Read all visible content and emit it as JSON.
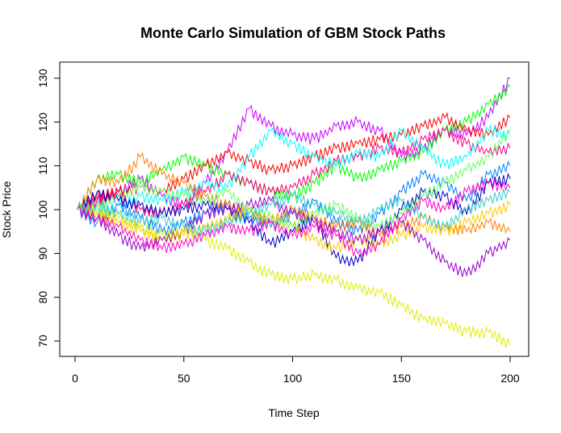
{
  "chart_data": {
    "type": "line",
    "title": "Monte Carlo Simulation of GBM Stock Paths",
    "xlabel": "Time Step",
    "ylabel": "Stock Price",
    "xlim": [
      0,
      200
    ],
    "ylim": [
      70,
      130
    ],
    "x_ticks": [
      0,
      50,
      100,
      150,
      200
    ],
    "y_ticks": [
      70,
      80,
      90,
      100,
      110,
      120,
      130
    ],
    "grid": false,
    "legend": "none",
    "series": [
      {
        "color": "#CC00FF",
        "x": [
          1,
          10,
          20,
          30,
          40,
          50,
          60,
          70,
          80,
          90,
          100,
          110,
          120,
          130,
          140,
          150,
          160,
          170,
          180,
          190,
          200
        ],
        "y": [
          100,
          102,
          104,
          107,
          103,
          101,
          106,
          113,
          123,
          119,
          117,
          116,
          119,
          120,
          118,
          112,
          114,
          118,
          117,
          121,
          130
        ]
      },
      {
        "color": "#00FF00",
        "x": [
          1,
          10,
          20,
          30,
          40,
          50,
          60,
          70,
          80,
          90,
          100,
          110,
          120,
          130,
          140,
          150,
          160,
          170,
          180,
          190,
          200
        ],
        "y": [
          100,
          107,
          108,
          106,
          109,
          112,
          110,
          108,
          106,
          104,
          103,
          106,
          110,
          107,
          109,
          111,
          113,
          118,
          120,
          124,
          128
        ]
      },
      {
        "color": "#FF0000",
        "x": [
          1,
          10,
          20,
          30,
          40,
          50,
          60,
          70,
          80,
          90,
          100,
          110,
          120,
          130,
          140,
          150,
          160,
          170,
          180,
          190,
          200
        ],
        "y": [
          100,
          103,
          104,
          105,
          104,
          107,
          110,
          113,
          111,
          109,
          110,
          112,
          114,
          115,
          116,
          117,
          119,
          121,
          118,
          117,
          121
        ]
      },
      {
        "color": "#FF0080",
        "x": [
          1,
          10,
          20,
          30,
          40,
          50,
          60,
          70,
          80,
          90,
          100,
          110,
          120,
          130,
          140,
          150,
          160,
          170,
          180,
          190,
          200
        ],
        "y": [
          100,
          102,
          103,
          100,
          99,
          101,
          104,
          108,
          106,
          104,
          105,
          108,
          111,
          112,
          114,
          113,
          116,
          118,
          115,
          113,
          114
        ]
      },
      {
        "color": "#00FFFF",
        "x": [
          1,
          10,
          20,
          30,
          40,
          50,
          60,
          70,
          80,
          90,
          100,
          110,
          120,
          130,
          140,
          150,
          160,
          170,
          180,
          190,
          200
        ],
        "y": [
          100,
          99,
          101,
          103,
          102,
          104,
          106,
          105,
          112,
          118,
          115,
          112,
          110,
          113,
          112,
          118,
          114,
          110,
          112,
          118,
          117
        ]
      },
      {
        "color": "#0000CC",
        "x": [
          1,
          10,
          20,
          30,
          40,
          50,
          60,
          70,
          80,
          90,
          100,
          110,
          120,
          130,
          140,
          150,
          160,
          170,
          180,
          190,
          200
        ],
        "y": [
          100,
          104,
          102,
          101,
          99,
          100,
          101,
          100,
          97,
          92,
          95,
          98,
          89,
          88,
          95,
          100,
          104,
          103,
          99,
          106,
          107
        ]
      },
      {
        "color": "#0080FF",
        "x": [
          1,
          10,
          20,
          30,
          40,
          50,
          60,
          70,
          80,
          90,
          100,
          110,
          120,
          130,
          140,
          150,
          160,
          170,
          180,
          190,
          200
        ],
        "y": [
          100,
          97,
          101,
          98,
          95,
          97,
          99,
          101,
          98,
          96,
          99,
          102,
          97,
          95,
          99,
          104,
          108,
          106,
          102,
          108,
          110
        ]
      },
      {
        "color": "#FF8000",
        "x": [
          1,
          10,
          20,
          30,
          40,
          50,
          60,
          70,
          80,
          90,
          100,
          110,
          120,
          130,
          140,
          150,
          160,
          170,
          180,
          190,
          200
        ],
        "y": [
          100,
          107,
          106,
          112,
          108,
          106,
          103,
          101,
          99,
          97,
          100,
          98,
          96,
          97,
          94,
          96,
          98,
          96,
          95,
          97,
          95
        ]
      },
      {
        "color": "#FFCC00",
        "x": [
          1,
          10,
          20,
          30,
          40,
          50,
          60,
          70,
          80,
          90,
          100,
          110,
          120,
          130,
          140,
          150,
          160,
          170,
          180,
          190,
          200
        ],
        "y": [
          100,
          99,
          97,
          95,
          93,
          94,
          96,
          98,
          100,
          98,
          96,
          93,
          91,
          93,
          92,
          94,
          96,
          95,
          97,
          99,
          101
        ]
      },
      {
        "color": "#9900CC",
        "x": [
          1,
          10,
          20,
          30,
          40,
          50,
          60,
          70,
          80,
          90,
          100,
          110,
          120,
          130,
          140,
          150,
          160,
          170,
          180,
          190,
          200
        ],
        "y": [
          100,
          98,
          94,
          91,
          93,
          95,
          99,
          100,
          101,
          102,
          99,
          97,
          95,
          93,
          95,
          97,
          93,
          88,
          85,
          90,
          93
        ]
      },
      {
        "color": "#DDEE00",
        "x": [
          1,
          10,
          20,
          30,
          40,
          50,
          60,
          70,
          80,
          90,
          100,
          110,
          120,
          130,
          140,
          150,
          160,
          170,
          180,
          190,
          200
        ],
        "y": [
          100,
          100,
          98,
          96,
          94,
          95,
          93,
          91,
          88,
          85,
          84,
          85,
          84,
          82,
          81,
          78,
          75,
          74,
          72,
          72,
          69
        ]
      },
      {
        "color": "#66FF66",
        "x": [
          1,
          10,
          20,
          30,
          40,
          50,
          60,
          70,
          80,
          90,
          100,
          110,
          120,
          130,
          140,
          150,
          160,
          170,
          180,
          190,
          200
        ],
        "y": [
          100,
          101,
          103,
          105,
          104,
          103,
          102,
          104,
          100,
          98,
          96,
          99,
          101,
          98,
          96,
          99,
          103,
          106,
          109,
          112,
          118
        ]
      },
      {
        "color": "#FF00CC",
        "x": [
          1,
          10,
          20,
          30,
          40,
          50,
          60,
          70,
          80,
          90,
          100,
          110,
          120,
          130,
          140,
          150,
          160,
          170,
          180,
          190,
          200
        ],
        "y": [
          100,
          98,
          96,
          93,
          91,
          92,
          94,
          96,
          95,
          97,
          94,
          96,
          94,
          90,
          92,
          98,
          102,
          100,
          104,
          106,
          105
        ]
      },
      {
        "color": "#33CCCC",
        "x": [
          1,
          10,
          20,
          30,
          40,
          50,
          60,
          70,
          80,
          90,
          100,
          110,
          120,
          130,
          140,
          150,
          160,
          170,
          180,
          190,
          200
        ],
        "y": [
          100,
          101,
          99,
          97,
          98,
          96,
          95,
          97,
          99,
          101,
          103,
          101,
          99,
          97,
          100,
          102,
          98,
          96,
          100,
          102,
          104
        ]
      }
    ]
  }
}
